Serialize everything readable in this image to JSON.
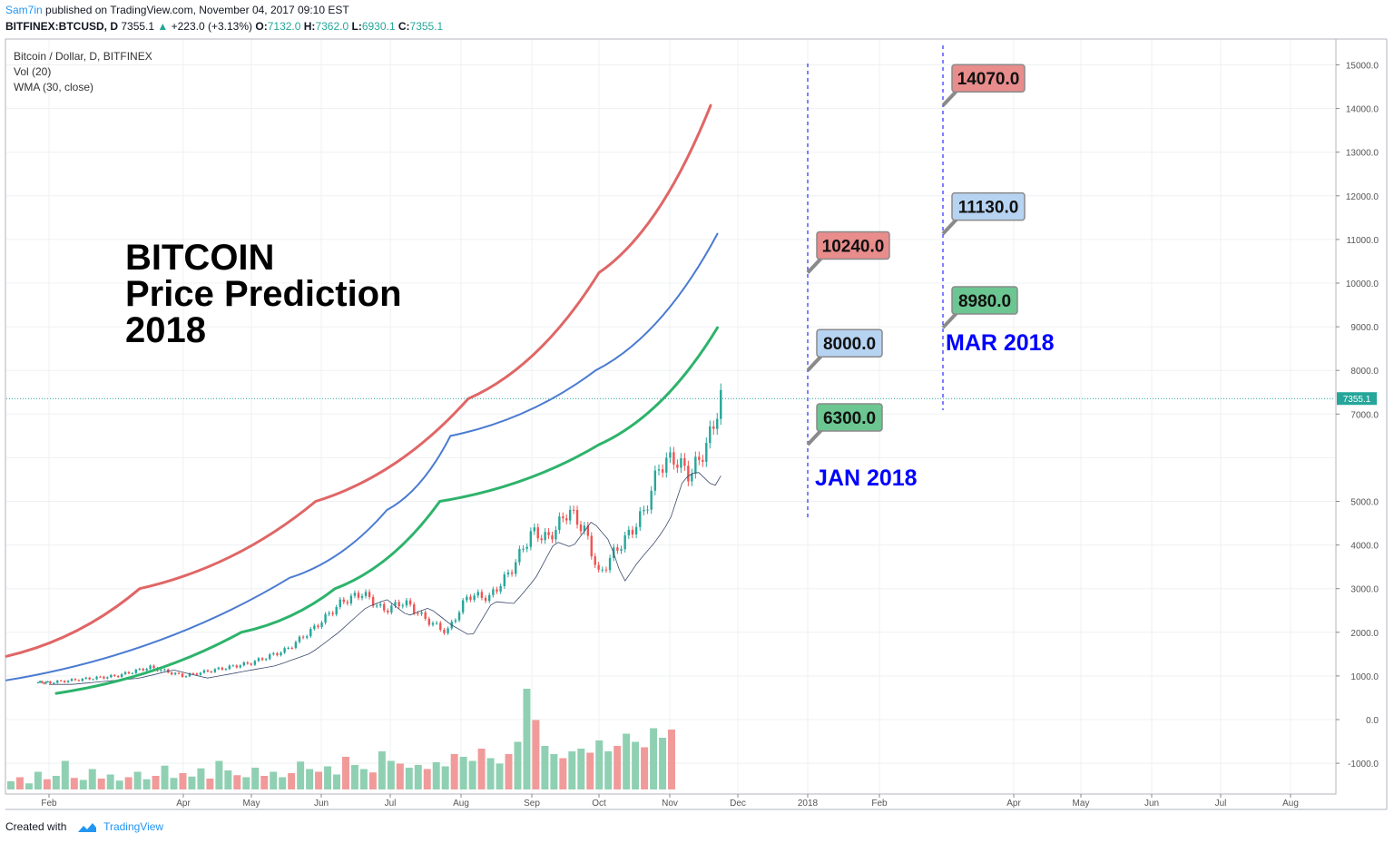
{
  "header": {
    "user": "Sam7in",
    "published": "published on TradingView.com, November 04, 2017 09:10 EST",
    "symbol": "BITFINEX:BTCUSD, D",
    "last": "7355.1",
    "change": "+223.0 (+3.13%)",
    "open_label": "O:",
    "open": "7132.0",
    "high_label": "H:",
    "high": "7362.0",
    "low_label": "L:",
    "low": "6930.1",
    "close_label": "C:",
    "close": "7355.1"
  },
  "legend": [
    "Bitcoin / Dollar, D, BITFINEX",
    "Vol (20)",
    "WMA (30, close)"
  ],
  "footer": {
    "created": "Created with",
    "brand": "TradingView"
  },
  "colors": {
    "red": "#e06666",
    "blue": "#4a7bd1",
    "green": "#2db36b",
    "marker": "#0000ff",
    "up": "#26a69a",
    "down": "#ef5350"
  },
  "chart_data": {
    "type": "line",
    "title_lines": [
      "BITCOIN",
      "Price Prediction",
      "2018"
    ],
    "x_ticks": [
      "Feb",
      "Apr",
      "May",
      "Jun",
      "Jul",
      "Aug",
      "Sep",
      "Oct",
      "Nov",
      "Dec",
      "2018",
      "Feb",
      "Apr",
      "May",
      "Jun",
      "Jul",
      "Aug"
    ],
    "y_ticks": [
      "15000.0",
      "14000.0",
      "13000.0",
      "12000.0",
      "11000.0",
      "10000.0",
      "9000.0",
      "8000.0",
      "7000.0",
      "5000.0",
      "4000.0",
      "3000.0",
      "2000.0",
      "1000.0",
      "0.0",
      "-1000.0"
    ],
    "y_tick_values": [
      15000,
      14000,
      13000,
      12000,
      11000,
      10000,
      9000,
      8000,
      7000,
      5000,
      4000,
      3000,
      2000,
      1000,
      0,
      -1000
    ],
    "ylim": [
      -1700,
      15300
    ],
    "current_price": "7355.1",
    "series": [
      {
        "color": "#e06666",
        "start": 1450,
        "points": [
          [
            1.35,
            3000
          ],
          [
            3.92,
            5000
          ],
          [
            6.1,
            7350
          ],
          [
            8.0,
            10240
          ],
          [
            9.6,
            14070
          ]
        ]
      },
      {
        "color": "#4a7bd1",
        "start": 900,
        "points": [
          [
            3.55,
            3250
          ],
          [
            4.95,
            4800
          ],
          [
            5.85,
            6500
          ],
          [
            7.95,
            8000
          ],
          [
            9.7,
            11130
          ]
        ]
      },
      {
        "color": "#2db36b",
        "start": 600,
        "points": [
          [
            2.85,
            2000
          ],
          [
            4.2,
            3000
          ],
          [
            5.7,
            5000
          ],
          [
            8.0,
            6300
          ],
          [
            9.7,
            8980
          ]
        ]
      }
    ],
    "targets": [
      {
        "label": "14070.0",
        "value": 14070,
        "color": "#e98c8c",
        "when": "MAR 2018"
      },
      {
        "label": "10240.0",
        "value": 10240,
        "color": "#e98c8c",
        "when": "JAN 2018"
      },
      {
        "label": "11130.0",
        "value": 11130,
        "color": "#b7d3f2",
        "when": "MAR 2018"
      },
      {
        "label": "8000.0",
        "value": 8000,
        "color": "#b7d3f2",
        "when": "JAN 2018"
      },
      {
        "label": "8980.0",
        "value": 8980,
        "color": "#6cc691",
        "when": "MAR 2018"
      },
      {
        "label": "6300.0",
        "value": 6300,
        "color": "#6cc691",
        "when": "JAN 2018"
      }
    ],
    "annotations": [
      "JAN 2018",
      "MAR 2018"
    ],
    "price_history": [
      [
        0.0,
        850
      ],
      [
        1.0,
        1000
      ],
      [
        1.5,
        1200
      ],
      [
        2.0,
        1000
      ],
      [
        2.5,
        1150
      ],
      [
        3.0,
        1300
      ],
      [
        3.5,
        1600
      ],
      [
        3.9,
        2100
      ],
      [
        4.3,
        2700
      ],
      [
        4.6,
        2900
      ],
      [
        4.9,
        2500
      ],
      [
        5.2,
        2700
      ],
      [
        5.5,
        2300
      ],
      [
        5.8,
        2000
      ],
      [
        6.1,
        2850
      ],
      [
        6.4,
        2800
      ],
      [
        6.7,
        3400
      ],
      [
        7.0,
        4300
      ],
      [
        7.25,
        4150
      ],
      [
        7.55,
        4800
      ],
      [
        7.8,
        4300
      ],
      [
        8.0,
        3300
      ],
      [
        8.2,
        3800
      ],
      [
        8.45,
        4300
      ],
      [
        8.65,
        4800
      ],
      [
        8.85,
        5800
      ],
      [
        9.05,
        6000
      ],
      [
        9.3,
        5600
      ],
      [
        9.55,
        6300
      ],
      [
        9.75,
        7355
      ]
    ],
    "price_history_note": "",
    "volume": [
      120,
      180,
      90,
      260,
      150,
      200,
      420,
      170,
      140,
      300,
      160,
      220,
      130,
      180,
      260,
      150,
      200,
      350,
      170,
      240,
      190,
      310,
      160,
      420,
      280,
      210,
      180,
      320,
      200,
      260,
      180,
      240,
      410,
      300,
      260,
      340,
      220,
      480,
      360,
      300,
      250,
      560,
      420,
      380,
      320,
      360,
      300,
      400,
      340,
      520,
      480,
      420,
      600,
      460,
      380,
      520,
      700,
      1480,
      1020,
      640,
      520,
      460,
      560,
      600,
      540,
      720,
      560,
      640,
      820,
      700,
      620,
      900,
      760,
      880
    ]
  }
}
